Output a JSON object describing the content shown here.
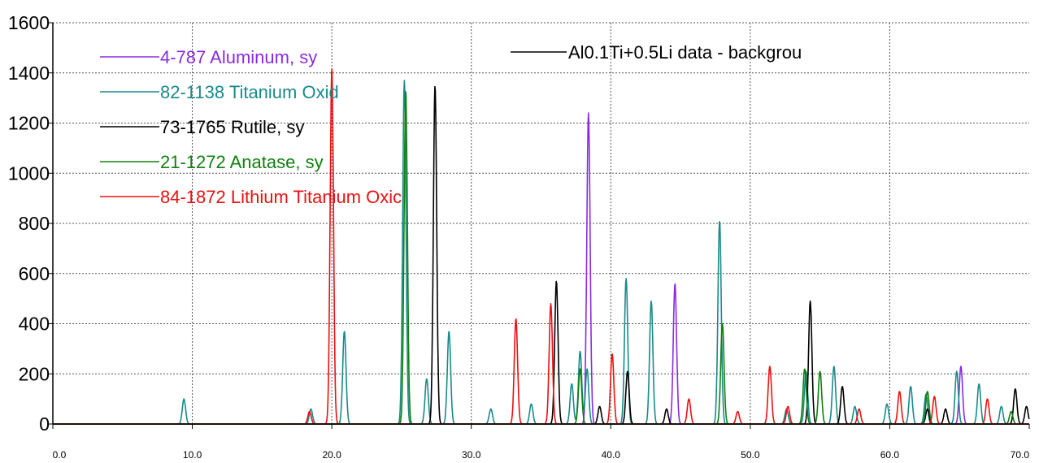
{
  "chart_data": {
    "type": "line",
    "xlim": [
      0,
      70
    ],
    "ylim": [
      0,
      1600
    ],
    "x_ticks": [
      "0.0",
      "10.0",
      "20.0",
      "30.0",
      "40.0",
      "50.0",
      "60.0",
      "70.0"
    ],
    "y_ticks": [
      "0",
      "200",
      "400",
      "600",
      "800",
      "1000",
      "1200",
      "1400",
      "1600"
    ],
    "grid": true,
    "legend_left": [
      {
        "label": "4-787 Aluminum, sy",
        "color": "#8a2be2"
      },
      {
        "label": "82-1138 Titanium Oxid",
        "color": "#1a8a8a"
      },
      {
        "label": "73-1765 Rutile, sy",
        "color": "#000000"
      },
      {
        "label": "21-1272 Anatase, sy",
        "color": "#108010"
      },
      {
        "label": "84-1872 Lithium Titanium Oxic",
        "color": "#ee1010"
      }
    ],
    "legend_right": {
      "label": "Al0.1Ti+0.5Li data - backgrou",
      "color": "#000000"
    },
    "series": [
      {
        "name": "4-787 Aluminum, sy",
        "color": "#8a2be2",
        "peaks": [
          [
            38.4,
            1240
          ],
          [
            44.6,
            560
          ],
          [
            65.1,
            230
          ]
        ]
      },
      {
        "name": "82-1138 Titanium Oxid",
        "color": "#1a8a8a",
        "peaks": [
          [
            9.4,
            100
          ],
          [
            18.5,
            60
          ],
          [
            20.9,
            370
          ],
          [
            25.2,
            1370
          ],
          [
            26.8,
            180
          ],
          [
            28.4,
            370
          ],
          [
            31.4,
            60
          ],
          [
            34.3,
            80
          ],
          [
            37.2,
            160
          ],
          [
            37.8,
            290
          ],
          [
            38.3,
            220
          ],
          [
            41.1,
            580
          ],
          [
            42.9,
            490
          ],
          [
            47.8,
            810
          ],
          [
            52.6,
            60
          ],
          [
            54.0,
            210
          ],
          [
            56.0,
            230
          ],
          [
            57.5,
            70
          ],
          [
            59.8,
            80
          ],
          [
            61.5,
            150
          ],
          [
            62.6,
            120
          ],
          [
            64.8,
            210
          ],
          [
            66.4,
            160
          ],
          [
            68.0,
            70
          ]
        ]
      },
      {
        "name": "73-1765 Rutile, sy",
        "color": "#000000",
        "peaks": [
          [
            27.4,
            1350
          ],
          [
            36.1,
            570
          ],
          [
            39.2,
            70
          ],
          [
            41.2,
            210
          ],
          [
            44.0,
            60
          ],
          [
            54.3,
            490
          ],
          [
            56.6,
            150
          ],
          [
            62.7,
            60
          ],
          [
            64.0,
            60
          ],
          [
            69.0,
            140
          ],
          [
            69.8,
            70
          ]
        ]
      },
      {
        "name": "21-1272 Anatase, sy",
        "color": "#108010",
        "peaks": [
          [
            25.3,
            1330
          ],
          [
            37.8,
            220
          ],
          [
            48.0,
            400
          ],
          [
            53.9,
            220
          ],
          [
            55.0,
            210
          ],
          [
            62.7,
            130
          ],
          [
            68.7,
            50
          ]
        ]
      },
      {
        "name": "84-1872 Lithium Titanium Oxic",
        "color": "#ee1010",
        "peaks": [
          [
            18.4,
            50
          ],
          [
            20.0,
            1420
          ],
          [
            33.2,
            420
          ],
          [
            35.7,
            480
          ],
          [
            40.1,
            280
          ],
          [
            45.6,
            100
          ],
          [
            49.1,
            50
          ],
          [
            51.4,
            230
          ],
          [
            52.7,
            70
          ],
          [
            57.8,
            60
          ],
          [
            60.7,
            130
          ],
          [
            63.2,
            110
          ],
          [
            67.0,
            100
          ]
        ]
      }
    ]
  }
}
